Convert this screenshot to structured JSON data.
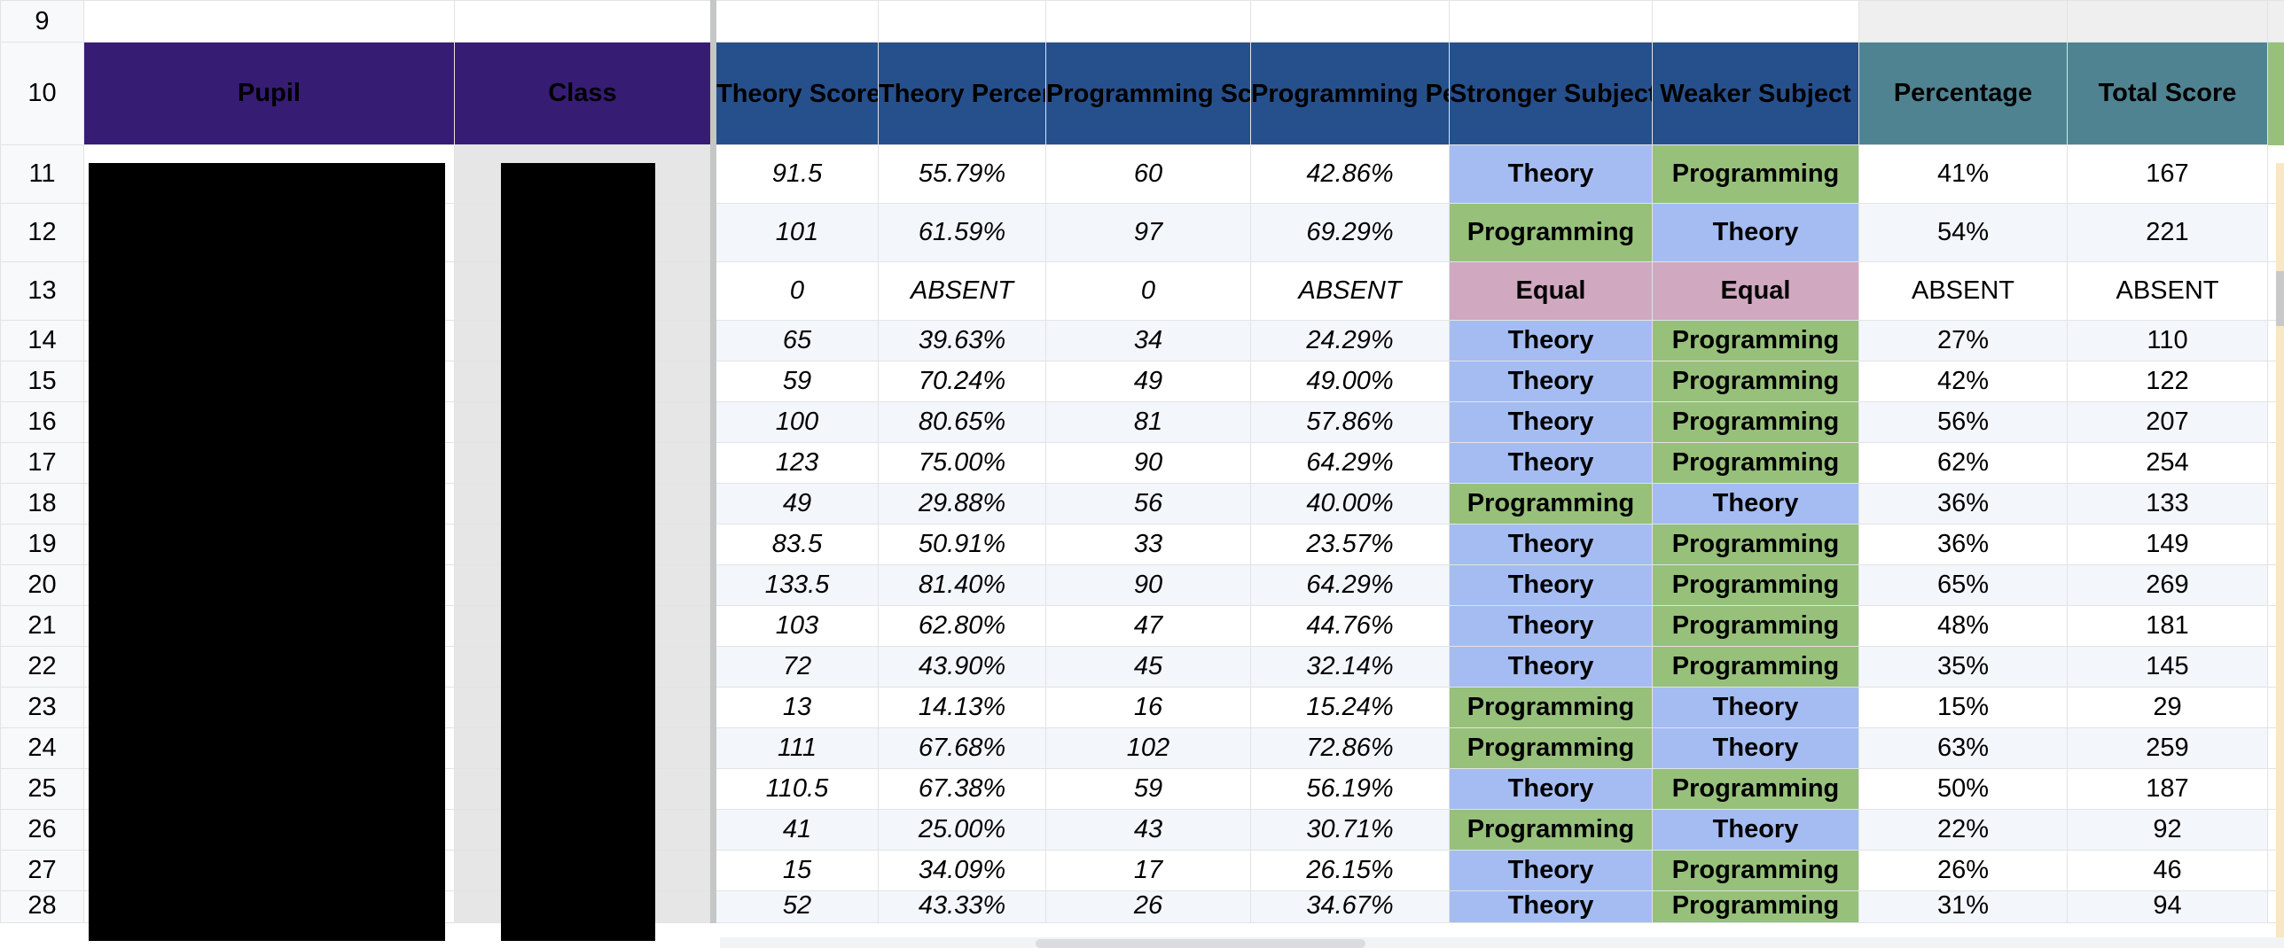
{
  "headers": {
    "row_number": "10",
    "pupil": "Pupil",
    "class": "Class",
    "theory_score": "Theory Score",
    "theory_percentage": "Theory Percentage",
    "programming_score": "Programming Score",
    "programming_percentage": "Programming Percentage",
    "stronger_subject": "Stronger Subject",
    "weaker_subject": "Weaker Subject",
    "percentage": "Percentage",
    "total_score": "Total Score"
  },
  "blank_row_number": "9",
  "rows": [
    {
      "n": "11",
      "ts": "91.5",
      "tp": "55.79%",
      "ps": "60",
      "pp": "42.86%",
      "stronger": "Theory",
      "weaker": "Programming",
      "pct": "41%",
      "total": "167"
    },
    {
      "n": "12",
      "ts": "101",
      "tp": "61.59%",
      "ps": "97",
      "pp": "69.29%",
      "stronger": "Programming",
      "weaker": "Theory",
      "pct": "54%",
      "total": "221"
    },
    {
      "n": "13",
      "ts": "0",
      "tp": "ABSENT",
      "ps": "0",
      "pp": "ABSENT",
      "stronger": "Equal",
      "weaker": "Equal",
      "pct": "ABSENT",
      "total": "ABSENT"
    },
    {
      "n": "14",
      "ts": "65",
      "tp": "39.63%",
      "ps": "34",
      "pp": "24.29%",
      "stronger": "Theory",
      "weaker": "Programming",
      "pct": "27%",
      "total": "110"
    },
    {
      "n": "15",
      "ts": "59",
      "tp": "70.24%",
      "ps": "49",
      "pp": "49.00%",
      "stronger": "Theory",
      "weaker": "Programming",
      "pct": "42%",
      "total": "122"
    },
    {
      "n": "16",
      "ts": "100",
      "tp": "80.65%",
      "ps": "81",
      "pp": "57.86%",
      "stronger": "Theory",
      "weaker": "Programming",
      "pct": "56%",
      "total": "207"
    },
    {
      "n": "17",
      "ts": "123",
      "tp": "75.00%",
      "ps": "90",
      "pp": "64.29%",
      "stronger": "Theory",
      "weaker": "Programming",
      "pct": "62%",
      "total": "254"
    },
    {
      "n": "18",
      "ts": "49",
      "tp": "29.88%",
      "ps": "56",
      "pp": "40.00%",
      "stronger": "Programming",
      "weaker": "Theory",
      "pct": "36%",
      "total": "133"
    },
    {
      "n": "19",
      "ts": "83.5",
      "tp": "50.91%",
      "ps": "33",
      "pp": "23.57%",
      "stronger": "Theory",
      "weaker": "Programming",
      "pct": "36%",
      "total": "149"
    },
    {
      "n": "20",
      "ts": "133.5",
      "tp": "81.40%",
      "ps": "90",
      "pp": "64.29%",
      "stronger": "Theory",
      "weaker": "Programming",
      "pct": "65%",
      "total": "269"
    },
    {
      "n": "21",
      "ts": "103",
      "tp": "62.80%",
      "ps": "47",
      "pp": "44.76%",
      "stronger": "Theory",
      "weaker": "Programming",
      "pct": "48%",
      "total": "181"
    },
    {
      "n": "22",
      "ts": "72",
      "tp": "43.90%",
      "ps": "45",
      "pp": "32.14%",
      "stronger": "Theory",
      "weaker": "Programming",
      "pct": "35%",
      "total": "145"
    },
    {
      "n": "23",
      "ts": "13",
      "tp": "14.13%",
      "ps": "16",
      "pp": "15.24%",
      "stronger": "Programming",
      "weaker": "Theory",
      "pct": "15%",
      "total": "29"
    },
    {
      "n": "24",
      "ts": "111",
      "tp": "67.68%",
      "ps": "102",
      "pp": "72.86%",
      "stronger": "Programming",
      "weaker": "Theory",
      "pct": "63%",
      "total": "259"
    },
    {
      "n": "25",
      "ts": "110.5",
      "tp": "67.38%",
      "ps": "59",
      "pp": "56.19%",
      "stronger": "Theory",
      "weaker": "Programming",
      "pct": "50%",
      "total": "187"
    },
    {
      "n": "26",
      "ts": "41",
      "tp": "25.00%",
      "ps": "43",
      "pp": "30.71%",
      "stronger": "Programming",
      "weaker": "Theory",
      "pct": "22%",
      "total": "92"
    },
    {
      "n": "27",
      "ts": "15",
      "tp": "34.09%",
      "ps": "17",
      "pp": "26.15%",
      "stronger": "Theory",
      "weaker": "Programming",
      "pct": "26%",
      "total": "46"
    },
    {
      "n": "28",
      "ts": "52",
      "tp": "43.33%",
      "ps": "26",
      "pp": "34.67%",
      "stronger": "Theory",
      "weaker": "Programming",
      "pct": "31%",
      "total": "94"
    }
  ],
  "colors": {
    "header_purple": "#371c74",
    "header_blue": "#26508c",
    "header_teal": "#4f8392",
    "theory": "#a4bcf1",
    "programming": "#97c07a",
    "equal": "#d0a8c0",
    "redaction": "#000000"
  }
}
